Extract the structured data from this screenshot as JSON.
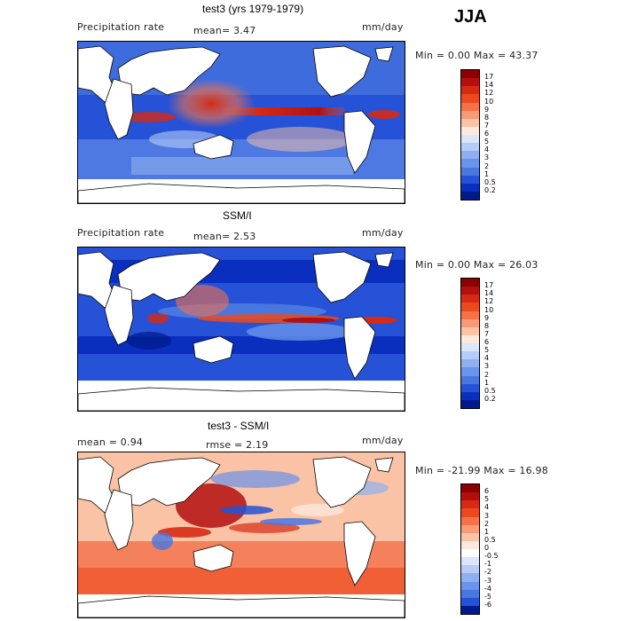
{
  "season": "JJA",
  "panels": [
    {
      "title": "test3 (yrs 1979-1979)",
      "var_label": "Precipitation rate",
      "stat1": "mean=   3.47",
      "stat2": "",
      "units": "mm/day",
      "range": "Min =    0.00 Max =  43.37",
      "colorbar_labels": [
        "17",
        "14",
        "12",
        "10",
        "9",
        "8",
        "7",
        "6",
        "5",
        "4",
        "3",
        "2",
        "1",
        "0.5",
        "0.2"
      ]
    },
    {
      "title": "SSM/I",
      "var_label": "Precipitation rate",
      "stat1": "mean=   2.53",
      "stat2": "",
      "units": "mm/day",
      "range": "Min =    0.00 Max =  26.03",
      "colorbar_labels": [
        "17",
        "14",
        "12",
        "10",
        "9",
        "8",
        "7",
        "6",
        "5",
        "4",
        "3",
        "2",
        "1",
        "0.5",
        "0.2"
      ]
    },
    {
      "title": "test3 - SSM/I",
      "var_label": "",
      "stat1": "mean =    0.94",
      "stat2": "rmse =    2.19",
      "units": "mm/day",
      "range": "Min = -21.99 Max =  16.98",
      "colorbar_labels": [
        "6",
        "5",
        "4",
        "3",
        "2",
        "1",
        "0.5",
        "0",
        "-0.5",
        "-1",
        "-2",
        "-3",
        "-4",
        "-5",
        "-6"
      ]
    }
  ],
  "colors": {
    "precip_scale": [
      "#8b0000",
      "#b30f0f",
      "#d62a14",
      "#ec4a1c",
      "#f4714a",
      "#f89a76",
      "#fbc3a6",
      "#fce8dc",
      "#dbe6fb",
      "#b6ccf6",
      "#8fb0f0",
      "#6a93ea",
      "#4877e0",
      "#2552d6",
      "#0a2fbe",
      "#001a8c"
    ],
    "diff_scale": [
      "#8b0000",
      "#b30f0f",
      "#d62a14",
      "#ec4a1c",
      "#f4714a",
      "#f89a76",
      "#fbc3a6",
      "#fce8dc",
      "#ffffff",
      "#dbe6fb",
      "#b6ccf6",
      "#8fb0f0",
      "#6a93ea",
      "#4877e0",
      "#2552d6",
      "#001a8c"
    ]
  },
  "chart_data": [
    {
      "type": "heatmap",
      "title": "test3 (yrs 1979-1979)",
      "units": "mm/day",
      "mean": 3.47,
      "min": 0.0,
      "max": 43.37,
      "levels": [
        0.2,
        0.5,
        1,
        2,
        3,
        4,
        5,
        6,
        7,
        8,
        9,
        10,
        12,
        14,
        17
      ]
    },
    {
      "type": "heatmap",
      "title": "SSM/I",
      "units": "mm/day",
      "mean": 2.53,
      "min": 0.0,
      "max": 26.03,
      "levels": [
        0.2,
        0.5,
        1,
        2,
        3,
        4,
        5,
        6,
        7,
        8,
        9,
        10,
        12,
        14,
        17
      ]
    },
    {
      "type": "heatmap",
      "title": "test3 - SSM/I",
      "units": "mm/day",
      "mean": 0.94,
      "rmse": 2.19,
      "min": -21.99,
      "max": 16.98,
      "levels": [
        -6,
        -5,
        -4,
        -3,
        -2,
        -1,
        -0.5,
        0,
        0.5,
        1,
        2,
        3,
        4,
        5,
        6
      ]
    }
  ]
}
